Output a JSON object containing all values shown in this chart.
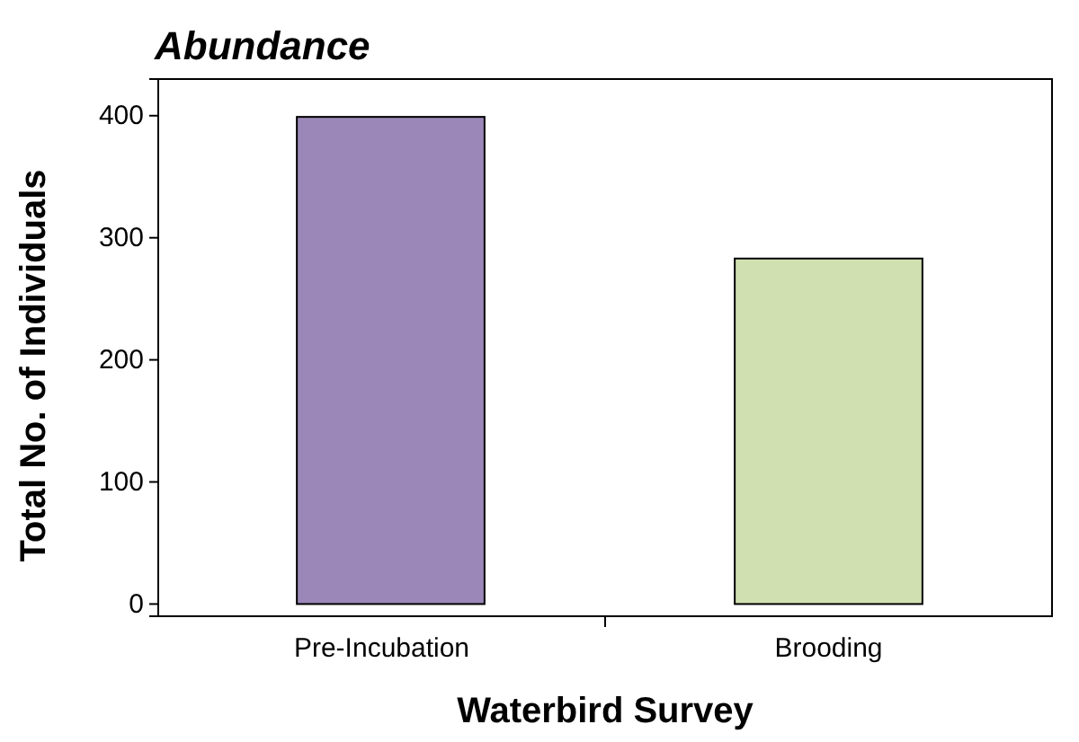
{
  "chart_data": {
    "type": "bar",
    "title": "Abundance",
    "xlabel": "Waterbird Survey",
    "ylabel": "Total No. of Individuals",
    "categories": [
      "Pre-Incubation",
      "Brooding"
    ],
    "series": [
      {
        "colors": [
          "#9b87b8",
          "#d0e0b0"
        ],
        "values": [
          399,
          283
        ]
      }
    ],
    "ylim": [
      -10,
      430
    ],
    "yticks": [
      0,
      100,
      200,
      300,
      400
    ],
    "grid": false
  }
}
